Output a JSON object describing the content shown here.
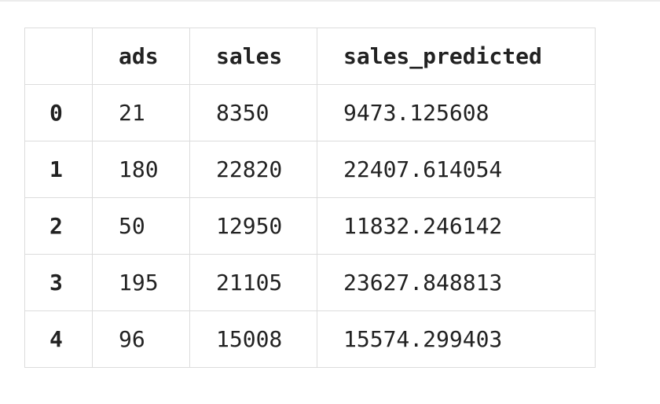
{
  "table": {
    "index_header": "",
    "columns": [
      "ads",
      "sales",
      "sales_predicted"
    ],
    "rows": [
      {
        "index": "0",
        "ads": "21",
        "sales": "8350",
        "sales_predicted": "9473.125608"
      },
      {
        "index": "1",
        "ads": "180",
        "sales": "22820",
        "sales_predicted": "22407.614054"
      },
      {
        "index": "2",
        "ads": "50",
        "sales": "12950",
        "sales_predicted": "11832.246142"
      },
      {
        "index": "3",
        "ads": "195",
        "sales": "21105",
        "sales_predicted": "23627.848813"
      },
      {
        "index": "4",
        "ads": "96",
        "sales": "15008",
        "sales_predicted": "15574.299403"
      }
    ]
  }
}
